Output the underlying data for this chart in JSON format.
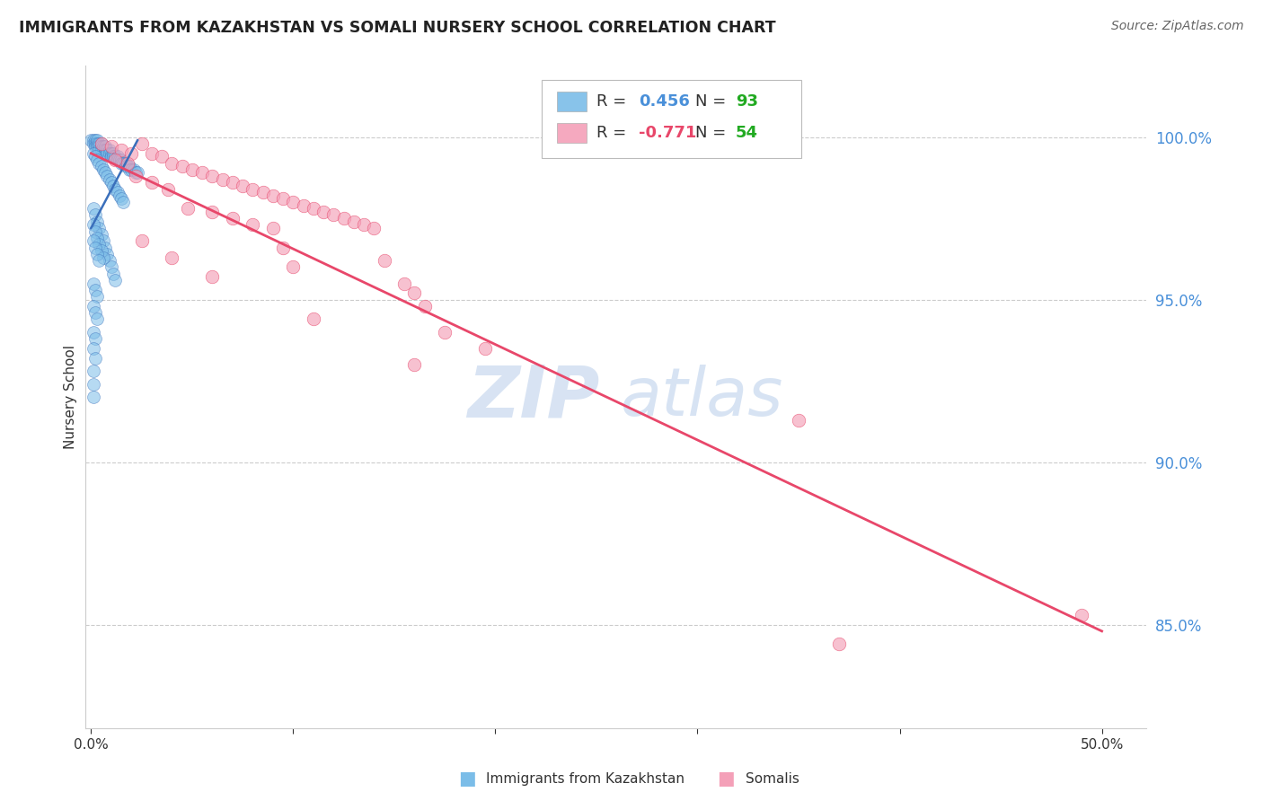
{
  "title": "IMMIGRANTS FROM KAZAKHSTAN VS SOMALI NURSERY SCHOOL CORRELATION CHART",
  "source": "Source: ZipAtlas.com",
  "ylabel": "Nursery School",
  "right_yticks": [
    "100.0%",
    "95.0%",
    "90.0%",
    "85.0%"
  ],
  "right_ytick_vals": [
    1.0,
    0.95,
    0.9,
    0.85
  ],
  "y_min": 0.818,
  "y_max": 1.022,
  "x_min": -0.003,
  "x_max": 0.522,
  "blue_color": "#7bbde8",
  "pink_color": "#f4a0b8",
  "blue_line_color": "#3a6fbb",
  "pink_line_color": "#e8476a",
  "right_axis_color": "#4a90d9",
  "legend_blue_r_color": "#4a90d9",
  "legend_pink_r_color": "#e8476a",
  "legend_n_color": "#22aa22",
  "watermark_zip_color": "#c8d8ee",
  "watermark_atlas_color": "#b0c8e8",
  "blue_scatter": [
    [
      0.0,
      0.999
    ],
    [
      0.001,
      0.999
    ],
    [
      0.001,
      0.998
    ],
    [
      0.002,
      0.999
    ],
    [
      0.002,
      0.998
    ],
    [
      0.002,
      0.997
    ],
    [
      0.003,
      0.999
    ],
    [
      0.003,
      0.998
    ],
    [
      0.003,
      0.997
    ],
    [
      0.004,
      0.998
    ],
    [
      0.004,
      0.997
    ],
    [
      0.004,
      0.996
    ],
    [
      0.005,
      0.998
    ],
    [
      0.005,
      0.997
    ],
    [
      0.005,
      0.996
    ],
    [
      0.006,
      0.997
    ],
    [
      0.006,
      0.996
    ],
    [
      0.007,
      0.997
    ],
    [
      0.007,
      0.996
    ],
    [
      0.007,
      0.995
    ],
    [
      0.008,
      0.996
    ],
    [
      0.008,
      0.995
    ],
    [
      0.009,
      0.996
    ],
    [
      0.009,
      0.995
    ],
    [
      0.01,
      0.995
    ],
    [
      0.01,
      0.994
    ],
    [
      0.011,
      0.995
    ],
    [
      0.011,
      0.994
    ],
    [
      0.012,
      0.994
    ],
    [
      0.013,
      0.994
    ],
    [
      0.013,
      0.993
    ],
    [
      0.014,
      0.993
    ],
    [
      0.015,
      0.993
    ],
    [
      0.015,
      0.992
    ],
    [
      0.016,
      0.992
    ],
    [
      0.017,
      0.992
    ],
    [
      0.017,
      0.991
    ],
    [
      0.018,
      0.991
    ],
    [
      0.019,
      0.991
    ],
    [
      0.019,
      0.99
    ],
    [
      0.02,
      0.99
    ],
    [
      0.021,
      0.99
    ],
    [
      0.022,
      0.989
    ],
    [
      0.023,
      0.989
    ],
    [
      0.001,
      0.995
    ],
    [
      0.002,
      0.994
    ],
    [
      0.003,
      0.993
    ],
    [
      0.004,
      0.992
    ],
    [
      0.005,
      0.991
    ],
    [
      0.006,
      0.99
    ],
    [
      0.007,
      0.989
    ],
    [
      0.008,
      0.988
    ],
    [
      0.009,
      0.987
    ],
    [
      0.01,
      0.986
    ],
    [
      0.011,
      0.985
    ],
    [
      0.012,
      0.984
    ],
    [
      0.013,
      0.983
    ],
    [
      0.014,
      0.982
    ],
    [
      0.015,
      0.981
    ],
    [
      0.016,
      0.98
    ],
    [
      0.001,
      0.978
    ],
    [
      0.002,
      0.976
    ],
    [
      0.003,
      0.974
    ],
    [
      0.004,
      0.972
    ],
    [
      0.005,
      0.97
    ],
    [
      0.006,
      0.968
    ],
    [
      0.007,
      0.966
    ],
    [
      0.008,
      0.964
    ],
    [
      0.009,
      0.962
    ],
    [
      0.01,
      0.96
    ],
    [
      0.011,
      0.958
    ],
    [
      0.012,
      0.956
    ],
    [
      0.001,
      0.973
    ],
    [
      0.002,
      0.971
    ],
    [
      0.003,
      0.969
    ],
    [
      0.004,
      0.967
    ],
    [
      0.005,
      0.965
    ],
    [
      0.006,
      0.963
    ],
    [
      0.001,
      0.968
    ],
    [
      0.002,
      0.966
    ],
    [
      0.003,
      0.964
    ],
    [
      0.004,
      0.962
    ],
    [
      0.001,
      0.955
    ],
    [
      0.002,
      0.953
    ],
    [
      0.003,
      0.951
    ],
    [
      0.001,
      0.948
    ],
    [
      0.002,
      0.946
    ],
    [
      0.003,
      0.944
    ],
    [
      0.001,
      0.94
    ],
    [
      0.002,
      0.938
    ],
    [
      0.001,
      0.935
    ],
    [
      0.002,
      0.932
    ],
    [
      0.001,
      0.928
    ],
    [
      0.001,
      0.924
    ],
    [
      0.001,
      0.92
    ]
  ],
  "pink_scatter": [
    [
      0.005,
      0.998
    ],
    [
      0.025,
      0.998
    ],
    [
      0.01,
      0.997
    ],
    [
      0.015,
      0.996
    ],
    [
      0.02,
      0.995
    ],
    [
      0.03,
      0.995
    ],
    [
      0.035,
      0.994
    ],
    [
      0.012,
      0.993
    ],
    [
      0.018,
      0.992
    ],
    [
      0.04,
      0.992
    ],
    [
      0.045,
      0.991
    ],
    [
      0.05,
      0.99
    ],
    [
      0.055,
      0.989
    ],
    [
      0.022,
      0.988
    ],
    [
      0.06,
      0.988
    ],
    [
      0.065,
      0.987
    ],
    [
      0.03,
      0.986
    ],
    [
      0.07,
      0.986
    ],
    [
      0.075,
      0.985
    ],
    [
      0.038,
      0.984
    ],
    [
      0.08,
      0.984
    ],
    [
      0.085,
      0.983
    ],
    [
      0.09,
      0.982
    ],
    [
      0.095,
      0.981
    ],
    [
      0.1,
      0.98
    ],
    [
      0.105,
      0.979
    ],
    [
      0.048,
      0.978
    ],
    [
      0.11,
      0.978
    ],
    [
      0.06,
      0.977
    ],
    [
      0.115,
      0.977
    ],
    [
      0.12,
      0.976
    ],
    [
      0.07,
      0.975
    ],
    [
      0.125,
      0.975
    ],
    [
      0.13,
      0.974
    ],
    [
      0.08,
      0.973
    ],
    [
      0.135,
      0.973
    ],
    [
      0.09,
      0.972
    ],
    [
      0.14,
      0.972
    ],
    [
      0.025,
      0.968
    ],
    [
      0.095,
      0.966
    ],
    [
      0.04,
      0.963
    ],
    [
      0.145,
      0.962
    ],
    [
      0.1,
      0.96
    ],
    [
      0.06,
      0.957
    ],
    [
      0.155,
      0.955
    ],
    [
      0.16,
      0.952
    ],
    [
      0.165,
      0.948
    ],
    [
      0.11,
      0.944
    ],
    [
      0.175,
      0.94
    ],
    [
      0.195,
      0.935
    ],
    [
      0.16,
      0.93
    ],
    [
      0.35,
      0.913
    ],
    [
      0.49,
      0.853
    ],
    [
      0.37,
      0.844
    ]
  ],
  "pink_line_x": [
    0.0,
    0.5
  ],
  "pink_line_y": [
    0.995,
    0.848
  ],
  "blue_line_x": [
    0.0,
    0.023
  ],
  "blue_line_y": [
    0.972,
    0.999
  ]
}
